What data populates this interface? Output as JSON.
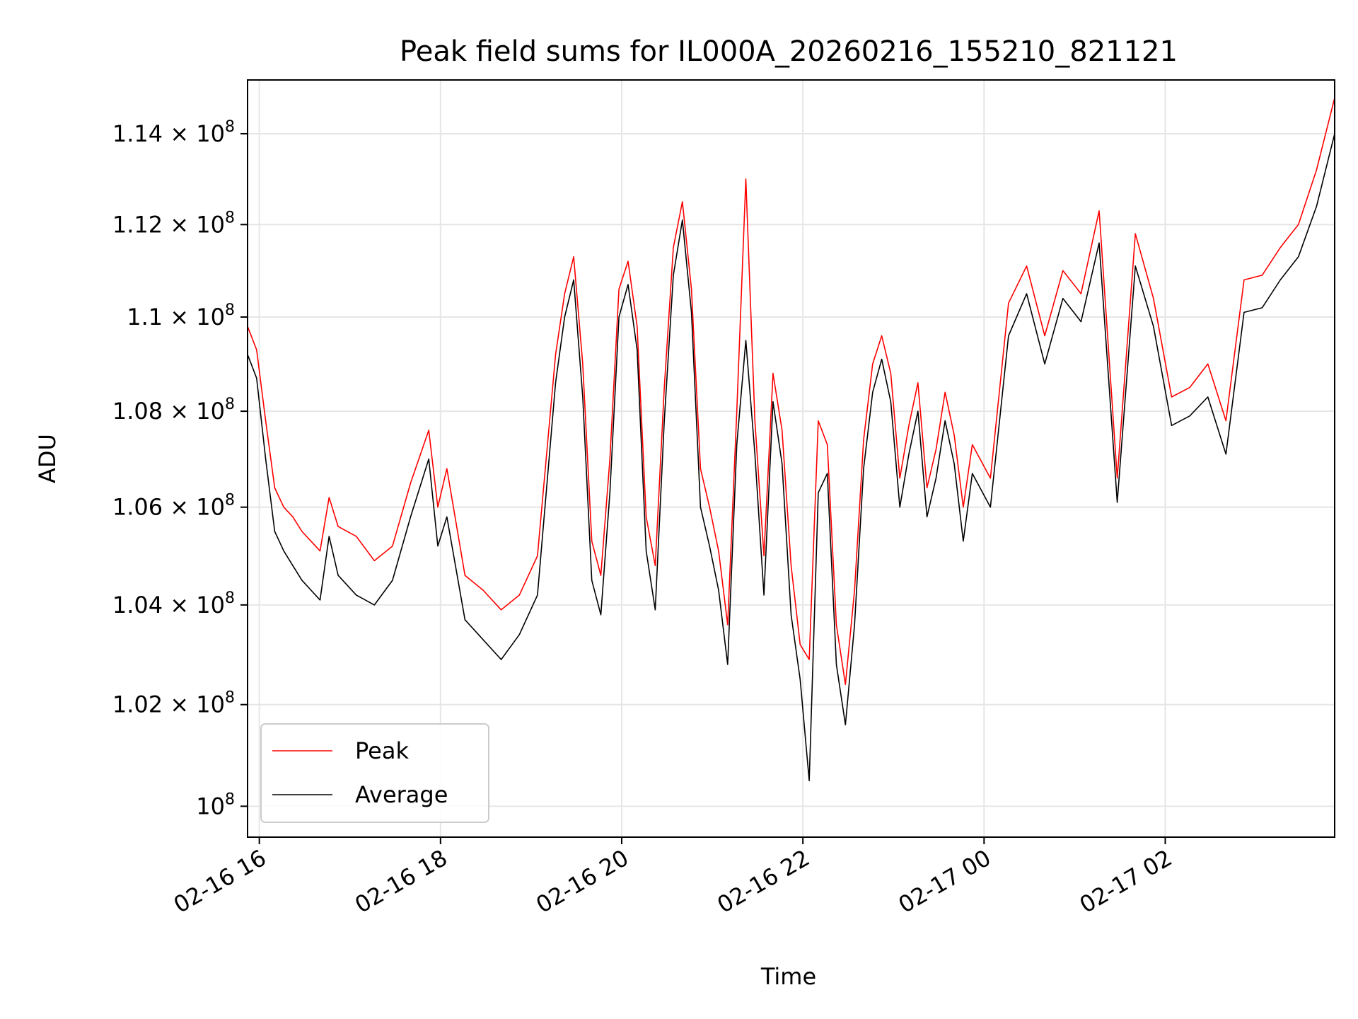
{
  "chart_data": {
    "type": "line",
    "title": "Peak field sums for IL000A_20260216_155210_821121",
    "xlabel": "Time",
    "ylabel": "ADU",
    "x_unit": "hours since 02-16 15:52",
    "xlim": [
      0,
      12.0
    ],
    "ylim": [
      99400000,
      115200000
    ],
    "y_scale": "log",
    "grid": true,
    "legend_position": "lower-left",
    "x_ticks": [
      {
        "x": 0.13,
        "label": "02-16 16"
      },
      {
        "x": 2.13,
        "label": "02-16 18"
      },
      {
        "x": 4.13,
        "label": "02-16 20"
      },
      {
        "x": 6.13,
        "label": "02-16 22"
      },
      {
        "x": 8.13,
        "label": "02-17 00"
      },
      {
        "x": 10.13,
        "label": "02-17 02"
      }
    ],
    "y_ticks": [
      {
        "y": 100000000,
        "label": "10",
        "exp": "8"
      },
      {
        "y": 102000000,
        "label": "1.02 × 10",
        "exp": "8"
      },
      {
        "y": 104000000,
        "label": "1.04 × 10",
        "exp": "8"
      },
      {
        "y": 106000000,
        "label": "1.06 × 10",
        "exp": "8"
      },
      {
        "y": 108000000,
        "label": "1.08 × 10",
        "exp": "8"
      },
      {
        "y": 110000000,
        "label": "1.1 × 10",
        "exp": "8"
      },
      {
        "y": 112000000,
        "label": "1.12 × 10",
        "exp": "8"
      },
      {
        "y": 114000000,
        "label": "1.14 × 10",
        "exp": "8"
      }
    ],
    "series": [
      {
        "name": "Peak",
        "color": "#ff0000",
        "x": [
          0.0,
          0.1,
          0.2,
          0.3,
          0.4,
          0.5,
          0.6,
          0.7,
          0.8,
          0.9,
          1.0,
          1.2,
          1.4,
          1.6,
          1.8,
          2.0,
          2.1,
          2.2,
          2.4,
          2.6,
          2.8,
          3.0,
          3.2,
          3.4,
          3.5,
          3.6,
          3.7,
          3.8,
          3.9,
          4.0,
          4.1,
          4.2,
          4.3,
          4.4,
          4.5,
          4.6,
          4.7,
          4.8,
          4.9,
          5.0,
          5.1,
          5.2,
          5.3,
          5.4,
          5.5,
          5.6,
          5.7,
          5.8,
          5.9,
          6.0,
          6.1,
          6.2,
          6.3,
          6.4,
          6.5,
          6.6,
          6.7,
          6.8,
          6.9,
          7.0,
          7.1,
          7.2,
          7.3,
          7.4,
          7.5,
          7.6,
          7.7,
          7.8,
          7.9,
          8.0,
          8.2,
          8.4,
          8.6,
          8.8,
          9.0,
          9.2,
          9.4,
          9.6,
          9.8,
          10.0,
          10.2,
          10.4,
          10.6,
          10.8,
          11.0,
          11.2,
          11.4,
          11.6,
          11.8,
          12.0
        ],
        "values": [
          109.8,
          109.3,
          107.8,
          106.4,
          106.0,
          105.8,
          105.5,
          105.3,
          105.1,
          106.2,
          105.6,
          105.4,
          104.9,
          105.2,
          106.5,
          107.6,
          106.0,
          106.8,
          104.6,
          104.3,
          103.9,
          104.2,
          105.0,
          109.2,
          110.5,
          111.3,
          109.0,
          105.3,
          104.6,
          107.0,
          110.6,
          111.2,
          109.8,
          105.8,
          104.8,
          108.5,
          111.5,
          112.5,
          110.6,
          106.8,
          106.0,
          105.1,
          103.6,
          108.0,
          113.0,
          107.8,
          105.0,
          108.8,
          107.6,
          104.8,
          103.2,
          102.9,
          107.8,
          107.3,
          103.6,
          102.4,
          104.3,
          107.4,
          109.0,
          109.6,
          108.8,
          106.6,
          107.7,
          108.6,
          106.4,
          107.2,
          108.4,
          107.5,
          106.0,
          107.3,
          106.6,
          110.3,
          111.1,
          109.6,
          111.0,
          110.5,
          112.3,
          106.6,
          111.8,
          110.4,
          108.3,
          108.5,
          109.0,
          107.8,
          110.8,
          110.9,
          111.5,
          112.0,
          113.2,
          114.8
        ]
      },
      {
        "name": "Average",
        "color": "#000000",
        "x": [
          0.0,
          0.1,
          0.2,
          0.3,
          0.4,
          0.5,
          0.6,
          0.7,
          0.8,
          0.9,
          1.0,
          1.2,
          1.4,
          1.6,
          1.8,
          2.0,
          2.1,
          2.2,
          2.4,
          2.6,
          2.8,
          3.0,
          3.2,
          3.4,
          3.5,
          3.6,
          3.7,
          3.8,
          3.9,
          4.0,
          4.1,
          4.2,
          4.3,
          4.4,
          4.5,
          4.6,
          4.7,
          4.8,
          4.9,
          5.0,
          5.1,
          5.2,
          5.3,
          5.4,
          5.5,
          5.6,
          5.7,
          5.8,
          5.9,
          6.0,
          6.1,
          6.2,
          6.3,
          6.4,
          6.5,
          6.6,
          6.7,
          6.8,
          6.9,
          7.0,
          7.1,
          7.2,
          7.3,
          7.4,
          7.5,
          7.6,
          7.7,
          7.8,
          7.9,
          8.0,
          8.2,
          8.4,
          8.6,
          8.8,
          9.0,
          9.2,
          9.4,
          9.6,
          9.8,
          10.0,
          10.2,
          10.4,
          10.6,
          10.8,
          11.0,
          11.2,
          11.4,
          11.6,
          11.8,
          12.0
        ],
        "values": [
          109.2,
          108.7,
          107.0,
          105.5,
          105.1,
          104.8,
          104.5,
          104.3,
          104.1,
          105.4,
          104.6,
          104.2,
          104.0,
          104.5,
          105.8,
          107.0,
          105.2,
          105.8,
          103.7,
          103.3,
          102.9,
          103.4,
          104.2,
          108.6,
          110.0,
          110.8,
          108.3,
          104.5,
          103.8,
          106.3,
          110.0,
          110.7,
          109.3,
          105.1,
          103.9,
          107.8,
          110.9,
          112.1,
          110.1,
          106.0,
          105.2,
          104.3,
          102.8,
          107.3,
          109.5,
          107.1,
          104.2,
          108.2,
          106.9,
          103.8,
          102.5,
          100.5,
          106.3,
          106.7,
          102.8,
          101.6,
          103.6,
          106.8,
          108.4,
          109.1,
          108.2,
          106.0,
          107.1,
          108.0,
          105.8,
          106.6,
          107.8,
          106.9,
          105.3,
          106.7,
          106.0,
          109.6,
          110.5,
          109.0,
          110.4,
          109.9,
          111.6,
          106.1,
          111.1,
          109.8,
          107.7,
          107.9,
          108.3,
          107.1,
          110.1,
          110.2,
          110.8,
          111.3,
          112.4,
          114.0
        ]
      }
    ]
  }
}
